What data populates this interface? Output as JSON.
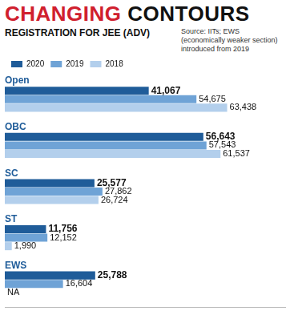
{
  "chart_data": {
    "type": "bar",
    "title": "CHANGING CONTOURS",
    "subtitle": "REGISTRATION FOR JEE (ADV)",
    "annotations": [
      "Source: IITs; EWS (economically weaker section) introduced from 2019"
    ],
    "orientation": "horizontal",
    "categories": [
      "Open",
      "OBC",
      "SC",
      "ST",
      "EWS"
    ],
    "series": [
      {
        "name": "2020",
        "color": "#1f5c99",
        "values": [
          41067,
          56643,
          25577,
          11756,
          25788
        ],
        "value_labels": [
          "41,067",
          "56,643",
          "25,577",
          "11,756",
          "25,788"
        ]
      },
      {
        "name": "2019",
        "color": "#6fa3d6",
        "values": [
          54675,
          57543,
          27862,
          12152,
          16604
        ],
        "value_labels": [
          "54,675",
          "57,543",
          "27,862",
          "12,152",
          "16,604"
        ]
      },
      {
        "name": "2018",
        "color": "#b3cfec",
        "values": [
          63438,
          61537,
          26724,
          1990,
          null
        ],
        "value_labels": [
          "63,438",
          "61,537",
          "26,724",
          "1,990",
          "NA"
        ]
      }
    ],
    "xlim": [
      0,
      80000
    ],
    "grid": false,
    "legend": "top-left",
    "data_labels": true,
    "tick_labels": "y"
  }
}
